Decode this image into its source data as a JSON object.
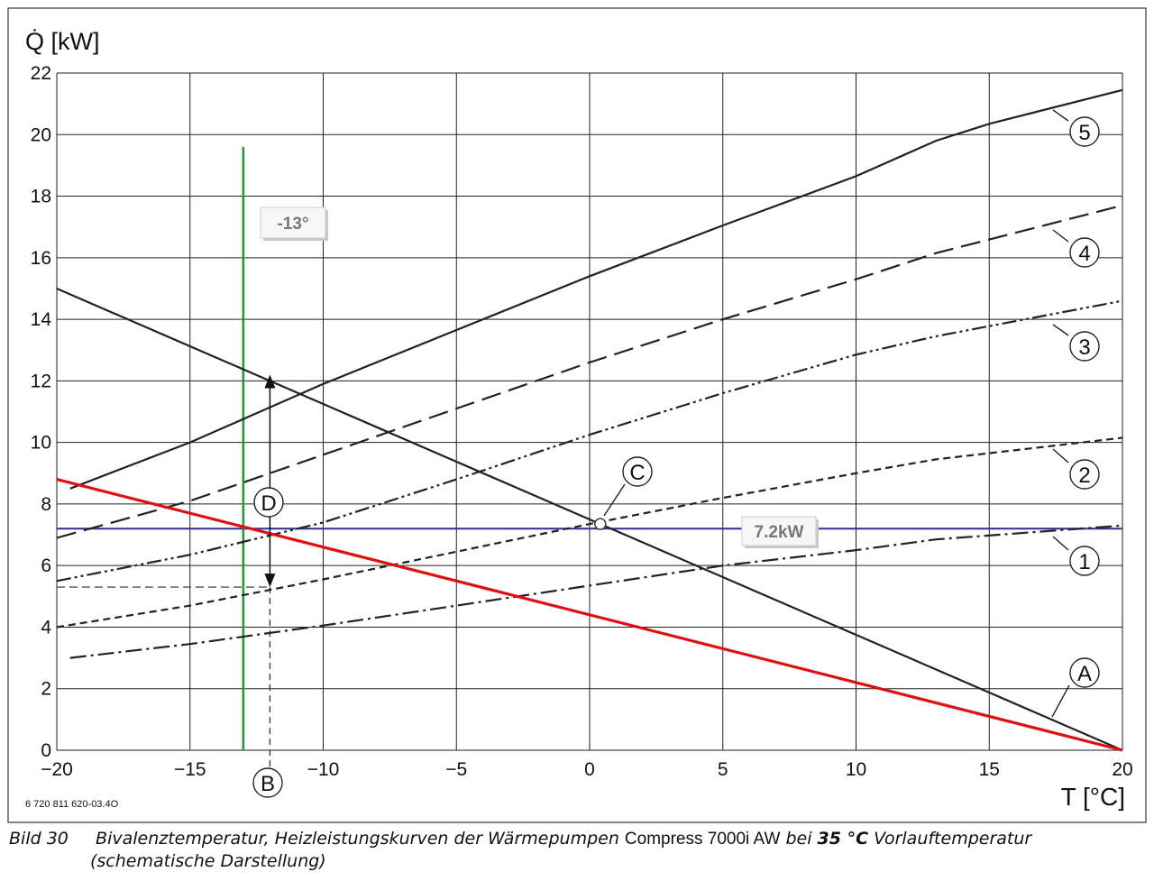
{
  "chart_data": {
    "type": "line",
    "ylabel": "Q̇ [kW]",
    "xlabel": "T [°C]",
    "xlim": [
      -20,
      20
    ],
    "ylim": [
      0,
      22
    ],
    "x_ticks": [
      "−20",
      "−15",
      "−10",
      "−5",
      "0",
      "5",
      "10",
      "15",
      "20"
    ],
    "y_ticks": [
      "0",
      "2",
      "4",
      "6",
      "8",
      "10",
      "12",
      "14",
      "16",
      "18",
      "20",
      "22"
    ],
    "grid": true,
    "series": [
      {
        "name": "1",
        "style": "dashdot",
        "color": "#222222",
        "points": [
          [
            -19.5,
            3.0
          ],
          [
            -15,
            3.45
          ],
          [
            -10,
            4.05
          ],
          [
            -5,
            4.7
          ],
          [
            0,
            5.35
          ],
          [
            5,
            6.0
          ],
          [
            10,
            6.5
          ],
          [
            13,
            6.85
          ],
          [
            20,
            7.3
          ]
        ]
      },
      {
        "name": "2",
        "style": "shortdash",
        "color": "#222222",
        "points": [
          [
            -20,
            4.0
          ],
          [
            -15,
            4.7
          ],
          [
            -10,
            5.55
          ],
          [
            -5,
            6.45
          ],
          [
            0,
            7.35
          ],
          [
            5,
            8.2
          ],
          [
            10,
            9.0
          ],
          [
            13,
            9.45
          ],
          [
            20,
            10.15
          ]
        ]
      },
      {
        "name": "3",
        "style": "dashdotdot",
        "color": "#222222",
        "points": [
          [
            -20,
            5.5
          ],
          [
            -15,
            6.35
          ],
          [
            -10,
            7.4
          ],
          [
            -5,
            8.8
          ],
          [
            0,
            10.25
          ],
          [
            5,
            11.6
          ],
          [
            10,
            12.85
          ],
          [
            13,
            13.45
          ],
          [
            20,
            14.6
          ]
        ]
      },
      {
        "name": "4",
        "style": "longdash",
        "color": "#222222",
        "points": [
          [
            -20,
            6.9
          ],
          [
            -15,
            8.1
          ],
          [
            -10,
            9.6
          ],
          [
            -5,
            11.1
          ],
          [
            0,
            12.6
          ],
          [
            5,
            14.0
          ],
          [
            10,
            15.3
          ],
          [
            13,
            16.15
          ],
          [
            20,
            17.7
          ]
        ]
      },
      {
        "name": "5",
        "style": "solid",
        "color": "#222222",
        "points": [
          [
            -19.5,
            8.5
          ],
          [
            -15,
            10.0
          ],
          [
            -10,
            11.9
          ],
          [
            -5,
            13.65
          ],
          [
            0,
            15.4
          ],
          [
            5,
            17.05
          ],
          [
            10,
            18.65
          ],
          [
            13,
            19.8
          ],
          [
            15,
            20.35
          ],
          [
            20,
            21.45
          ]
        ]
      },
      {
        "name": "A",
        "style": "solid",
        "color": "#222222",
        "points": [
          [
            -20,
            15.0
          ],
          [
            20,
            0
          ]
        ]
      },
      {
        "name": "red",
        "style": "solid",
        "color": "#e01010",
        "points": [
          [
            -20,
            8.8
          ],
          [
            20,
            0
          ]
        ]
      }
    ],
    "reference_lines": {
      "horizontal_kw": 7.2,
      "horizontal_label": "7.2kW",
      "vertical_t": -13,
      "vertical_label": "-13°",
      "vertical_top": 19.6
    },
    "markers": {
      "B_t": -12,
      "C_point": [
        0.4,
        7.35
      ],
      "D_range": [
        5.3,
        12.2
      ],
      "dashed_y": 5.3
    },
    "callouts": [
      "1",
      "2",
      "3",
      "4",
      "5",
      "A",
      "B",
      "C",
      "D"
    ],
    "code": "6 720 811 620-03.4O"
  },
  "caption": {
    "label": "Bild 30",
    "text": "Bivalenztemperatur, Heizleistungskurven der Wärmepumpen",
    "product": "Compress 7000i AW",
    "text2": "bei",
    "bold": "35 °C",
    "text3": "Vorlauftemperatur",
    "line2": "(schematische Darstellung)"
  },
  "colors": {
    "blue": "#2b2f8f",
    "green": "#1d9a30",
    "red": "#e01010",
    "grid": "#222222"
  }
}
